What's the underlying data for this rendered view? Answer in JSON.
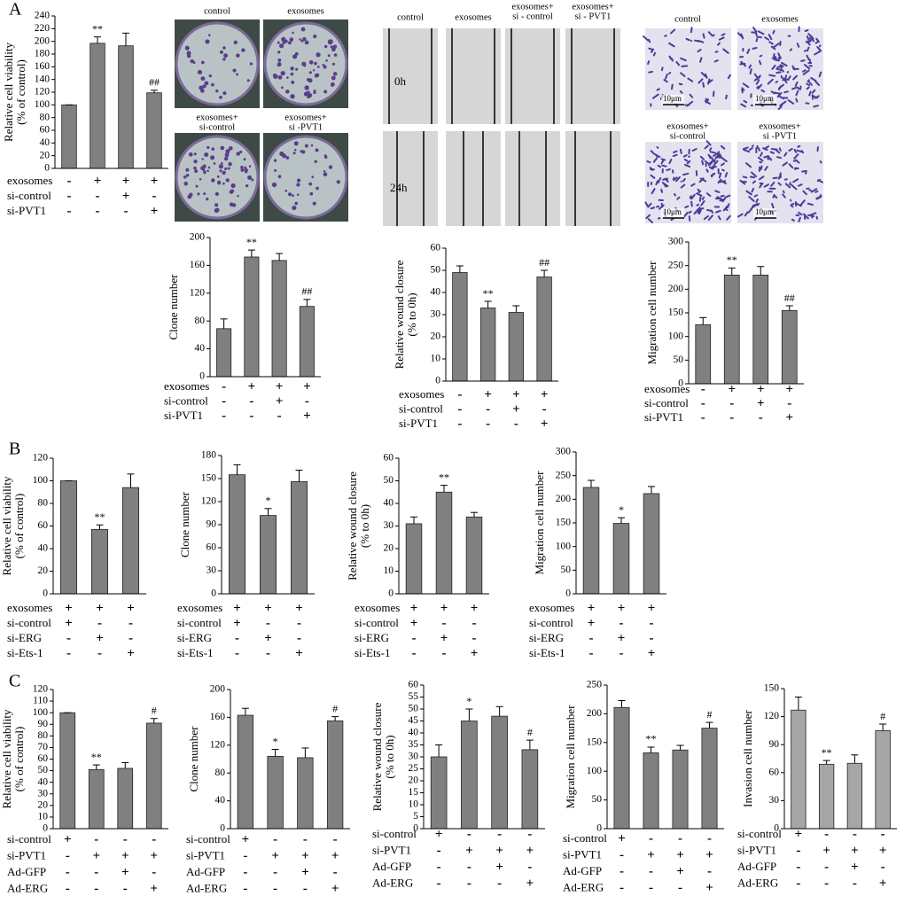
{
  "panel_labels": [
    "A",
    "B",
    "C"
  ],
  "image_panels": [
    {
      "titles": [
        [
          "control"
        ],
        [
          "exosomes"
        ],
        [
          "exosomes+",
          "si-control"
        ],
        [
          "exosomes+",
          "si -PVT1"
        ]
      ]
    },
    {
      "titles": [
        [
          "control"
        ],
        [
          "exosomes"
        ],
        [
          "exosomes+",
          "si - control"
        ],
        [
          "exosomes+",
          "si - PVT1"
        ]
      ],
      "rows": [
        "0h",
        "24h"
      ]
    },
    {
      "titles": [
        [
          "control"
        ],
        [
          "exosomes"
        ],
        [
          "exosomes+",
          "si-control"
        ],
        [
          "exosomes+",
          "si -PVT1"
        ]
      ],
      "scale": "10μm"
    }
  ],
  "chart_data": [
    {
      "type": "bar",
      "ylabel": [
        "Relative cell viability",
        "(% of control)"
      ],
      "values": [
        100,
        197,
        193,
        119
      ],
      "errors": [
        0,
        10,
        20,
        4
      ],
      "annotations": [
        null,
        "**",
        null,
        "##"
      ],
      "color": "#808080",
      "ylim": [
        0,
        240
      ],
      "yticks": [
        0,
        20,
        40,
        60,
        80,
        100,
        120,
        140,
        160,
        180,
        200,
        220,
        240
      ],
      "treatments": [
        {
          "name": "exosomes",
          "marks": [
            "-",
            "+",
            "+",
            "+"
          ]
        },
        {
          "name": "si-control",
          "marks": [
            "-",
            "-",
            "+",
            "-"
          ]
        },
        {
          "name": "si-PVT1",
          "marks": [
            "-",
            "-",
            "-",
            "+"
          ]
        }
      ]
    },
    {
      "type": "bar",
      "ylabel": [
        "Clone number"
      ],
      "values": [
        69,
        172,
        167,
        101
      ],
      "errors": [
        14,
        10,
        10,
        10
      ],
      "annotations": [
        null,
        "**",
        null,
        "##"
      ],
      "color": "#808080",
      "ylim": [
        0,
        200
      ],
      "yticks": [
        0,
        40,
        80,
        120,
        160,
        200
      ],
      "treatments": [
        {
          "name": "exosomes",
          "marks": [
            "-",
            "+",
            "+",
            "+"
          ]
        },
        {
          "name": "si-control",
          "marks": [
            "-",
            "-",
            "+",
            "-"
          ]
        },
        {
          "name": "si-PVT1",
          "marks": [
            "-",
            "-",
            "-",
            "+"
          ]
        }
      ]
    },
    {
      "type": "bar",
      "ylabel": [
        "Relative wound closure",
        "(% to 0h)"
      ],
      "values": [
        49,
        33,
        31,
        47
      ],
      "errors": [
        3,
        3,
        3,
        3
      ],
      "annotations": [
        null,
        "**",
        null,
        "##"
      ],
      "color": "#808080",
      "ylim": [
        0,
        60
      ],
      "yticks": [
        0,
        10,
        20,
        30,
        40,
        50,
        60
      ],
      "treatments": [
        {
          "name": "exosomes",
          "marks": [
            "-",
            "+",
            "+",
            "+"
          ]
        },
        {
          "name": "si-control",
          "marks": [
            "-",
            "-",
            "+",
            "-"
          ]
        },
        {
          "name": "si-PVT1",
          "marks": [
            "-",
            "-",
            "-",
            "+"
          ]
        }
      ]
    },
    {
      "type": "bar",
      "ylabel": [
        "Migration cell number"
      ],
      "values": [
        125,
        230,
        230,
        155
      ],
      "errors": [
        15,
        15,
        18,
        10
      ],
      "annotations": [
        null,
        "**",
        null,
        "##"
      ],
      "color": "#808080",
      "ylim": [
        0,
        300
      ],
      "yticks": [
        0,
        50,
        100,
        150,
        200,
        250,
        300
      ],
      "treatments": [
        {
          "name": "exosomes",
          "marks": [
            "-",
            "+",
            "+",
            "+"
          ]
        },
        {
          "name": "si-control",
          "marks": [
            "-",
            "-",
            "+",
            "-"
          ]
        },
        {
          "name": "si-PVT1",
          "marks": [
            "-",
            "-",
            "-",
            "+"
          ]
        }
      ]
    },
    {
      "type": "bar",
      "ylabel": [
        "Relative cell viability",
        "(% of control)"
      ],
      "values": [
        100,
        57,
        94
      ],
      "errors": [
        0,
        4,
        12
      ],
      "annotations": [
        null,
        "**",
        null
      ],
      "color": "#808080",
      "ylim": [
        0,
        120
      ],
      "yticks": [
        0,
        20,
        40,
        60,
        80,
        100,
        120
      ],
      "treatments": [
        {
          "name": "exosomes",
          "marks": [
            "+",
            "+",
            "+"
          ]
        },
        {
          "name": "si-control",
          "marks": [
            "+",
            "-",
            "-"
          ]
        },
        {
          "name": "si-ERG",
          "marks": [
            "-",
            "+",
            "-"
          ]
        },
        {
          "name": "si-Ets-1",
          "marks": [
            "-",
            "-",
            "+"
          ]
        }
      ]
    },
    {
      "type": "bar",
      "ylabel": [
        "Clone number"
      ],
      "values": [
        155,
        102,
        146
      ],
      "errors": [
        13,
        9,
        15
      ],
      "annotations": [
        null,
        "*",
        null
      ],
      "color": "#808080",
      "ylim": [
        0,
        180
      ],
      "yticks": [
        0,
        30,
        60,
        90,
        120,
        150,
        180
      ],
      "treatments": [
        {
          "name": "exosomes",
          "marks": [
            "+",
            "+",
            "+"
          ]
        },
        {
          "name": "si-control",
          "marks": [
            "+",
            "-",
            "-"
          ]
        },
        {
          "name": "si-ERG",
          "marks": [
            "-",
            "+",
            "-"
          ]
        },
        {
          "name": "si-Ets-1",
          "marks": [
            "-",
            "-",
            "+"
          ]
        }
      ]
    },
    {
      "type": "bar",
      "ylabel": [
        "Relative wound closure",
        "(% to 0h)"
      ],
      "values": [
        31,
        45,
        34
      ],
      "errors": [
        3,
        3,
        2
      ],
      "annotations": [
        null,
        "**",
        null
      ],
      "color": "#808080",
      "ylim": [
        0,
        60
      ],
      "yticks": [
        0,
        10,
        20,
        30,
        40,
        50,
        60
      ],
      "treatments": [
        {
          "name": "exosomes",
          "marks": [
            "+",
            "+",
            "+"
          ]
        },
        {
          "name": "si-control",
          "marks": [
            "+",
            "-",
            "-"
          ]
        },
        {
          "name": "si-ERG",
          "marks": [
            "-",
            "+",
            "-"
          ]
        },
        {
          "name": "si-Ets-1",
          "marks": [
            "-",
            "-",
            "+"
          ]
        }
      ]
    },
    {
      "type": "bar",
      "ylabel": [
        "Migration cell number"
      ],
      "values": [
        225,
        149,
        212
      ],
      "errors": [
        15,
        12,
        15
      ],
      "annotations": [
        null,
        "*",
        null
      ],
      "color": "#808080",
      "ylim": [
        0,
        300
      ],
      "yticks": [
        0,
        50,
        100,
        150,
        200,
        250,
        300
      ],
      "treatments": [
        {
          "name": "exosomes",
          "marks": [
            "+",
            "+",
            "+"
          ]
        },
        {
          "name": "si-control",
          "marks": [
            "+",
            "-",
            "-"
          ]
        },
        {
          "name": "si-ERG",
          "marks": [
            "-",
            "+",
            "-"
          ]
        },
        {
          "name": "si-Ets-1",
          "marks": [
            "-",
            "-",
            "+"
          ]
        }
      ]
    },
    {
      "type": "bar",
      "ylabel": [
        "Relative cell viability",
        "(% of control)"
      ],
      "values": [
        100,
        51,
        52,
        91
      ],
      "errors": [
        0,
        4,
        5,
        4
      ],
      "annotations": [
        null,
        "**",
        null,
        "#"
      ],
      "color": "#808080",
      "ylim": [
        0,
        120
      ],
      "yticks": [
        0,
        10,
        20,
        30,
        40,
        50,
        60,
        70,
        80,
        90,
        100,
        110,
        120
      ],
      "treatments": [
        {
          "name": "si-control",
          "marks": [
            "+",
            "-",
            "-",
            "-"
          ]
        },
        {
          "name": "si-PVT1",
          "marks": [
            "-",
            "+",
            "+",
            "+"
          ]
        },
        {
          "name": "Ad-GFP",
          "marks": [
            "-",
            "-",
            "+",
            "-"
          ]
        },
        {
          "name": "Ad-ERG",
          "marks": [
            "-",
            "-",
            "-",
            "+"
          ]
        }
      ]
    },
    {
      "type": "bar",
      "ylabel": [
        "Clone number"
      ],
      "values": [
        163,
        104,
        102,
        155
      ],
      "errors": [
        10,
        10,
        14,
        6
      ],
      "annotations": [
        null,
        "*",
        null,
        "#"
      ],
      "color": "#808080",
      "ylim": [
        0,
        200
      ],
      "yticks": [
        0,
        40,
        80,
        120,
        160,
        200
      ],
      "treatments": [
        {
          "name": "si-control",
          "marks": [
            "+",
            "-",
            "-",
            "-"
          ]
        },
        {
          "name": "si-PVT1",
          "marks": [
            "-",
            "+",
            "+",
            "+"
          ]
        },
        {
          "name": "Ad-GFP",
          "marks": [
            "-",
            "-",
            "+",
            "-"
          ]
        },
        {
          "name": "Ad-ERG",
          "marks": [
            "-",
            "-",
            "-",
            "+"
          ]
        }
      ]
    },
    {
      "type": "bar",
      "ylabel": [
        "Relative wound closure",
        "(% to 0h)"
      ],
      "values": [
        30,
        45,
        47,
        33
      ],
      "errors": [
        5,
        5,
        4,
        4
      ],
      "annotations": [
        null,
        "*",
        null,
        "#"
      ],
      "color": "#808080",
      "ylim": [
        0,
        60
      ],
      "yticks": [
        0,
        5,
        10,
        15,
        20,
        25,
        30,
        35,
        40,
        45,
        50,
        55,
        60
      ],
      "treatments": [
        {
          "name": "si-control",
          "marks": [
            "+",
            "-",
            "-",
            "-"
          ]
        },
        {
          "name": "si-PVT1",
          "marks": [
            "-",
            "+",
            "+",
            "+"
          ]
        },
        {
          "name": "Ad-GFP",
          "marks": [
            "-",
            "-",
            "+",
            "-"
          ]
        },
        {
          "name": "Ad-ERG",
          "marks": [
            "-",
            "-",
            "-",
            "+"
          ]
        }
      ]
    },
    {
      "type": "bar",
      "ylabel": [
        "Migration cell number"
      ],
      "values": [
        211,
        132,
        137,
        175
      ],
      "errors": [
        12,
        10,
        8,
        10
      ],
      "annotations": [
        null,
        "**",
        null,
        "#"
      ],
      "color": "#808080",
      "ylim": [
        0,
        250
      ],
      "yticks": [
        0,
        50,
        100,
        150,
        200,
        250
      ],
      "treatments": [
        {
          "name": "si-control",
          "marks": [
            "+",
            "-",
            "-",
            "-"
          ]
        },
        {
          "name": "si-PVT1",
          "marks": [
            "-",
            "+",
            "+",
            "+"
          ]
        },
        {
          "name": "Ad-GFP",
          "marks": [
            "-",
            "-",
            "+",
            "-"
          ]
        },
        {
          "name": "Ad-ERG",
          "marks": [
            "-",
            "-",
            "-",
            "+"
          ]
        }
      ]
    },
    {
      "type": "bar",
      "ylabel": [
        "Invasion cell number"
      ],
      "values": [
        127,
        69,
        70,
        105
      ],
      "errors": [
        14,
        4,
        9,
        7
      ],
      "annotations": [
        null,
        "**",
        null,
        "#"
      ],
      "color": "#a6a6a6",
      "ylim": [
        0,
        150
      ],
      "yticks": [
        0,
        30,
        60,
        90,
        120,
        150
      ],
      "treatments": [
        {
          "name": "si-control",
          "marks": [
            "+",
            "-",
            "-",
            "-"
          ]
        },
        {
          "name": "si-PVT1",
          "marks": [
            "-",
            "+",
            "+",
            "+"
          ]
        },
        {
          "name": "Ad-GFP",
          "marks": [
            "-",
            "-",
            "+",
            "-"
          ]
        },
        {
          "name": "Ad-ERG",
          "marks": [
            "-",
            "-",
            "-",
            "+"
          ]
        }
      ]
    }
  ]
}
